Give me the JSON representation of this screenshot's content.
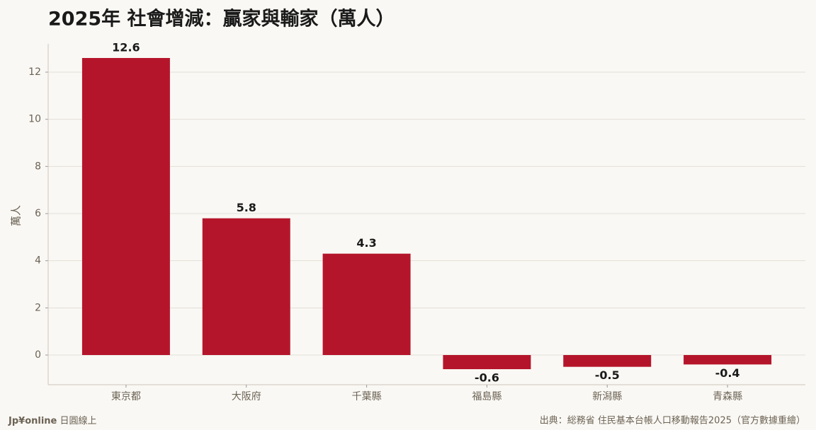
{
  "chart_data": {
    "type": "bar",
    "title": "2025年 社會增減：贏家與輸家（萬人）",
    "ylabel": "萬人",
    "categories": [
      "東京都",
      "大阪府",
      "千葉縣",
      "福島縣",
      "新潟縣",
      "青森縣"
    ],
    "values": [
      12.6,
      5.8,
      4.3,
      -0.6,
      -0.5,
      -0.4
    ],
    "color": "#b5152b",
    "ylim": [
      -1.26,
      13.2
    ],
    "yticks": [
      0,
      2,
      4,
      6,
      8,
      10,
      12
    ],
    "grid": true
  },
  "footer": {
    "brand": "Jp¥online",
    "brand_sub": "日圓線上",
    "source": "出典：総務省 住民基本台帳人口移動報告2025（官方數據重繪）"
  }
}
